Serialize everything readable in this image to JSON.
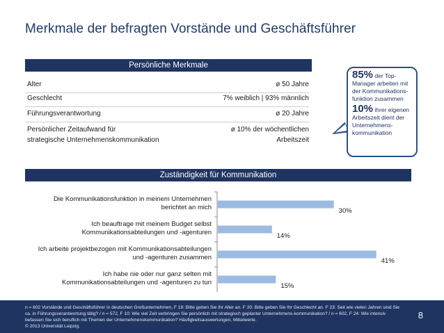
{
  "title": "Merkmale der befragten Vorstände und Geschäftsführer",
  "section1": {
    "header": "Persönliche Merkmale",
    "rows": [
      {
        "label": "Alter",
        "label2": "",
        "value": "ø 50 Jahre",
        "value2": ""
      },
      {
        "label": "Geschlecht",
        "label2": "",
        "value": "7% weiblich | 93% männlich",
        "value2": ""
      },
      {
        "label": "Führungsverantwortung",
        "label2": "",
        "value": "ø 20 Jahre",
        "value2": ""
      },
      {
        "label": "Persönlicher Zeitaufwand für",
        "label2": "strategische Unternehmenskommunikation",
        "value": "ø 10% der wöchentlichen",
        "value2": "Arbeitszeit"
      }
    ]
  },
  "callout": {
    "stat1": "85%",
    "text1": "der Top-Manager arbeiten mit der Kommunikations-funktion zusammen",
    "stat2": "10%",
    "text2": "ihrer eigenen Arbeitszeit dient der Unternehmens-kommunikation"
  },
  "section2": {
    "header": "Zuständigkeit für Kommunikation"
  },
  "chart_data": {
    "type": "bar",
    "orientation": "horizontal",
    "title": "Zuständigkeit für Kommunikation",
    "categories": [
      [
        "Die Kommunikationsfunktion in meinem Unternehmen",
        "berichtet an mich"
      ],
      [
        "Ich beauftrage mit meinem Budget selbst",
        "Kommunikationsabteilungen und -agenturen"
      ],
      [
        "Ich arbeite projektbezogen mit Kommunikationsabteilungen",
        "und -agenturen zusammen"
      ],
      [
        "Ich habe nie oder nur ganz selten mit",
        "Kommunikationsabteilungen und -agenturen zu tun"
      ]
    ],
    "values": [
      30,
      14,
      41,
      15
    ],
    "value_labels": [
      "30%",
      "14%",
      "41%",
      "15%"
    ],
    "xlim": [
      0,
      45
    ],
    "bar_color": "#9cbbe3"
  },
  "footer": {
    "footnote": "n = 602 Vorstände und Geschäftsführer in deutschen Großunternehmen, F 19: Bitte geben Sie Ihr Alter an. F 20: Bitte geben Sie Ihr Geschlecht an. F 23: Seit wie vielen Jahren sind Sie ca. in Führungsverantwortung tätig? / n = 572, F 10: Wie viel Zeit verbringen Sie persönlich mit strategisch geplanter Unternehmens-kommunikation? / n = 602, F 24: Wie intensiv befassen Sie sich beruflich mit Themen der Unternehmenskommunikation? Häufigkeitsauswertungen, Mittelwerte.",
    "copyright": "© 2013 Universität Leipzig.",
    "page": "8"
  }
}
